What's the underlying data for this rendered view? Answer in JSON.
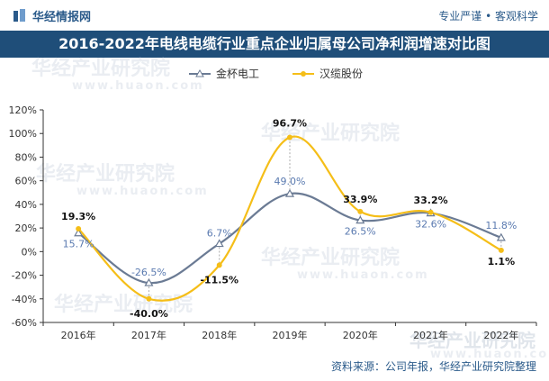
{
  "header": {
    "brand": "华经情报网",
    "tagline": "专业严谨 • 客观科学",
    "title": "2016-2022年电线电缆行业重点企业归属母公司净利润增速对比图"
  },
  "footer": {
    "source": "资料来源：公司年报，华经产业研究院整理"
  },
  "watermark": {
    "text": "华经产业研究院",
    "url": "www.huaon.com"
  },
  "colors": {
    "title_bg": "#1f4e79",
    "series1": "#6b7b94",
    "series2": "#f5be18"
  },
  "chart_data": {
    "type": "line",
    "title": "2016-2022年电线电缆行业重点企业归属母公司净利润增速对比图",
    "categories": [
      "2016年",
      "2017年",
      "2018年",
      "2019年",
      "2020年",
      "2021年",
      "2022年"
    ],
    "series": [
      {
        "name": "金杯电工",
        "values": [
          15.7,
          -26.5,
          6.7,
          49.0,
          26.5,
          32.6,
          11.8
        ],
        "labels": [
          "15.7%",
          "-26.5%",
          "6.7%",
          "49.0%",
          "26.5%",
          "32.6%",
          "11.8%"
        ],
        "marker": "triangle"
      },
      {
        "name": "汉缆股份",
        "values": [
          19.3,
          -40.0,
          -11.5,
          96.7,
          33.9,
          33.2,
          1.1
        ],
        "labels": [
          "19.3%",
          "-40.0%",
          "-11.5%",
          "96.7%",
          "33.9%",
          "33.2%",
          "1.1%"
        ],
        "marker": "circle"
      }
    ],
    "ylim": [
      -60,
      120
    ],
    "yticks": [
      "-60%",
      "-40%",
      "-20%",
      "0%",
      "20%",
      "40%",
      "60%",
      "80%",
      "100%",
      "120%"
    ],
    "ytick_values": [
      -60,
      -40,
      -20,
      0,
      20,
      40,
      60,
      80,
      100,
      120
    ],
    "legend": "top-center",
    "grid": false
  }
}
